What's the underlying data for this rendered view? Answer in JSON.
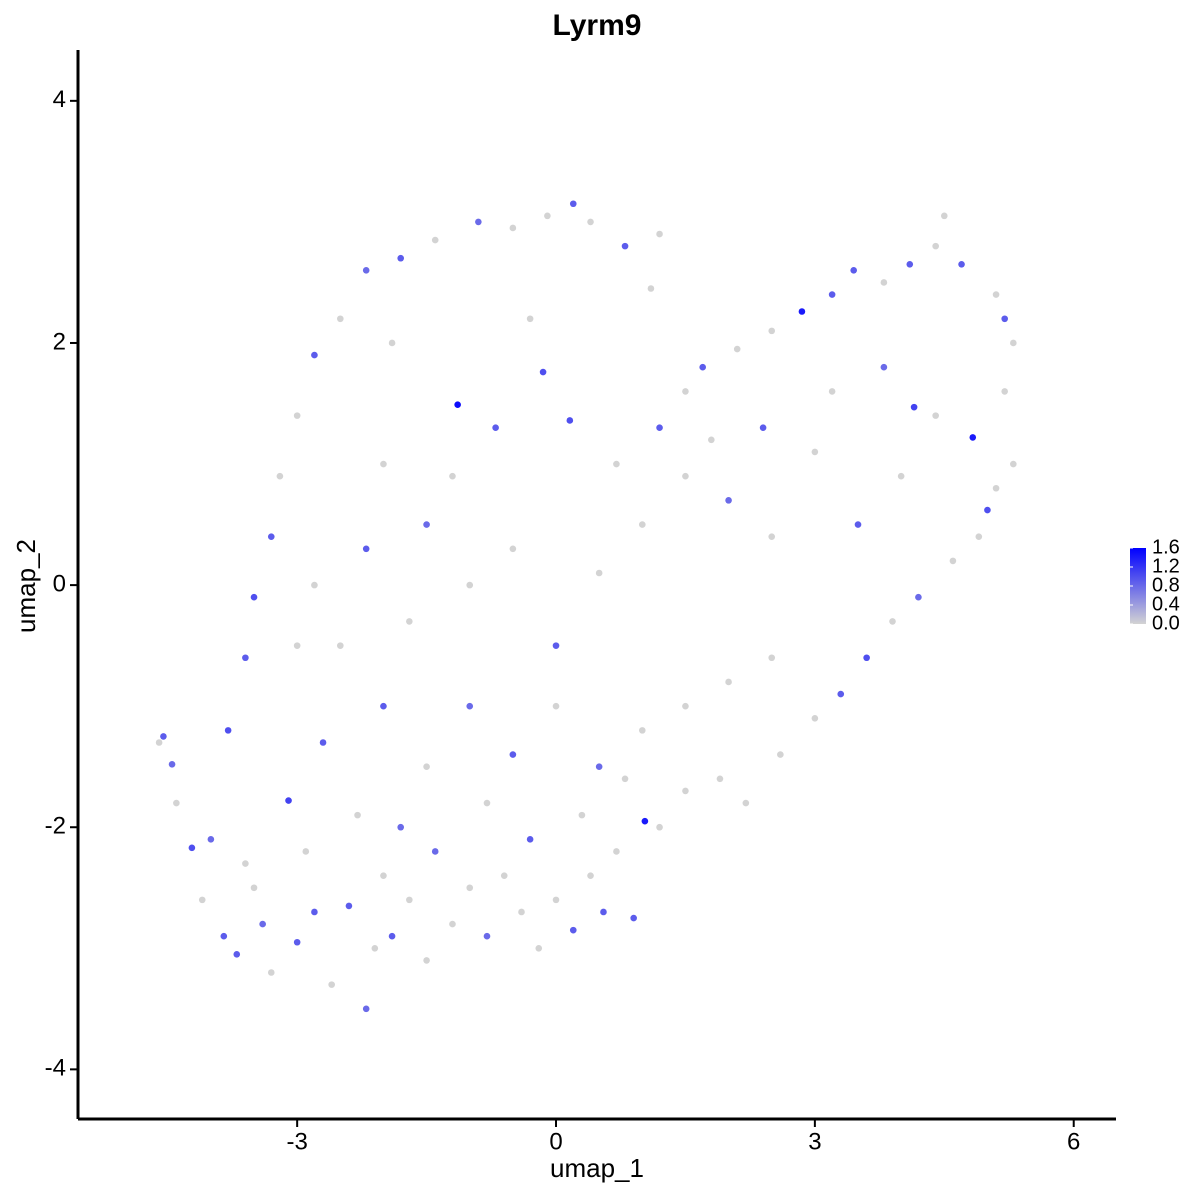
{
  "chart_data": {
    "type": "scatter",
    "title": "Lyrm9",
    "x_label": "umap_1",
    "y_label": "umap_2",
    "xlim": [
      -5.54,
      6.49
    ],
    "ylim": [
      -4.41,
      4.42
    ],
    "xticks": [
      -3,
      0,
      3,
      6
    ],
    "yticks": [
      -4,
      -2,
      0,
      2,
      4
    ],
    "color_low": "#d3d3d3",
    "color_high": "#0000ff",
    "clim": [
      0,
      1.6
    ],
    "cticks": [
      {
        "value": 0,
        "label": "0.0"
      },
      {
        "value": 0.4,
        "label": "0.4"
      },
      {
        "value": 0.8,
        "label": "0.8"
      },
      {
        "value": 1.2,
        "label": "1.2"
      },
      {
        "value": 1.6,
        "label": "1.6"
      }
    ],
    "x": [
      -4.55,
      -4.45,
      -4.6,
      -4.4,
      -4.22,
      -4.1,
      -4.0,
      -3.85,
      -3.7,
      -3.6,
      -3.5,
      -3.4,
      -3.3,
      -3.1,
      -3.0,
      -2.9,
      -2.8,
      -2.6,
      -2.4,
      -2.2,
      -2.1,
      -2.0,
      -1.9,
      -1.7,
      -1.5,
      -1.4,
      -1.2,
      -1.0,
      -0.8,
      -0.6,
      -0.4,
      -0.2,
      0.0,
      0.2,
      0.4,
      0.55,
      0.7,
      0.9,
      1.03,
      1.2,
      1.5,
      1.9,
      2.2,
      2.6,
      3.0,
      3.3,
      3.6,
      3.9,
      4.2,
      4.6,
      4.9,
      5.1,
      5.0,
      5.3,
      5.2,
      5.3,
      5.2,
      5.1,
      4.83,
      4.7,
      4.5,
      4.4,
      4.1,
      3.8,
      3.45,
      3.2,
      2.85,
      2.5,
      2.1,
      1.7,
      1.5,
      1.2,
      1.1,
      0.8,
      0.4,
      0.2,
      -0.1,
      -0.5,
      -0.9,
      -1.4,
      -1.8,
      -2.2,
      -2.5,
      -2.8,
      -3.0,
      -3.2,
      -3.3,
      -3.5,
      -3.6,
      -3.8,
      -1.14,
      -0.15,
      0.16,
      4.15,
      -2.0,
      -1.5,
      -1.0,
      -0.5,
      0.0,
      0.5,
      1.0,
      1.5,
      2.0,
      2.5,
      3.0,
      3.5,
      4.0,
      4.4,
      3.8,
      3.2,
      2.4,
      1.8,
      1.2,
      0.7,
      -2.5,
      -2.0,
      -1.5,
      -1.0,
      -0.5,
      0.0,
      0.5,
      1.0,
      1.5,
      2.0,
      2.5,
      -3.0,
      -2.7,
      -2.3,
      -1.8,
      -0.8,
      -0.3,
      0.3,
      0.8,
      -2.8,
      -2.2,
      -1.7,
      -1.2,
      -0.7,
      -0.3,
      -1.9
    ],
    "y": [
      -1.25,
      -1.48,
      -1.3,
      -1.8,
      -2.17,
      -2.6,
      -2.1,
      -2.9,
      -3.05,
      -2.3,
      -2.5,
      -2.8,
      -3.2,
      -1.78,
      -2.95,
      -2.2,
      -2.7,
      -3.3,
      -2.65,
      -3.5,
      -3.0,
      -2.4,
      -2.9,
      -2.6,
      -3.1,
      -2.2,
      -2.8,
      -2.5,
      -2.9,
      -2.4,
      -2.7,
      -3.0,
      -2.6,
      -2.85,
      -2.4,
      -2.7,
      -2.2,
      -2.75,
      -1.95,
      -2.0,
      -1.7,
      -1.6,
      -1.8,
      -1.4,
      -1.1,
      -0.9,
      -0.6,
      -0.3,
      -0.1,
      0.2,
      0.4,
      0.8,
      0.62,
      1.0,
      1.6,
      2.0,
      2.2,
      2.4,
      1.22,
      2.65,
      3.05,
      2.8,
      2.65,
      2.5,
      2.6,
      2.4,
      2.26,
      2.1,
      1.95,
      1.8,
      1.6,
      2.9,
      2.45,
      2.8,
      3.0,
      3.15,
      3.05,
      2.95,
      3.0,
      2.85,
      2.7,
      2.6,
      2.2,
      1.9,
      1.4,
      0.9,
      0.4,
      -0.1,
      -0.6,
      -1.2,
      1.49,
      1.76,
      1.36,
      1.47,
      1.0,
      0.5,
      0.0,
      0.3,
      -0.5,
      0.1,
      0.5,
      0.9,
      0.7,
      0.4,
      1.1,
      0.5,
      0.9,
      1.4,
      1.8,
      1.6,
      1.3,
      1.2,
      1.3,
      1.0,
      -0.5,
      -1.0,
      -1.5,
      -1.0,
      -1.4,
      -1.0,
      -1.5,
      -1.2,
      -1.0,
      -0.8,
      -0.6,
      -0.5,
      -1.3,
      -1.9,
      -2.0,
      -1.8,
      -2.1,
      -1.9,
      -1.6,
      0.0,
      0.3,
      -0.3,
      0.9,
      1.3,
      2.2,
      2.0
    ],
    "values": [
      0.9,
      0.8,
      0,
      0,
      1.0,
      0,
      0.8,
      0.9,
      0.9,
      0,
      0,
      0.8,
      0,
      1.1,
      0.9,
      0,
      0.9,
      0,
      0.9,
      0.8,
      0,
      0,
      0.9,
      0,
      0,
      0.8,
      0,
      0,
      0.8,
      0,
      0,
      0,
      0,
      0.9,
      0,
      0.9,
      0,
      0.9,
      1.4,
      0,
      0,
      0,
      0,
      0,
      0,
      0.9,
      1.0,
      0,
      0.8,
      0,
      0,
      0,
      1.0,
      0,
      0,
      0,
      0.9,
      0,
      1.4,
      0.9,
      0,
      0,
      0.9,
      0,
      0.9,
      0.9,
      1.4,
      0,
      0,
      0.9,
      0,
      0,
      0,
      0.9,
      0,
      0.9,
      0,
      0,
      0.8,
      0,
      0.9,
      0.8,
      0,
      0.9,
      0,
      0,
      0.9,
      1.0,
      0.9,
      1.0,
      1.5,
      1.0,
      1.0,
      1.1,
      0,
      0.8,
      0,
      0,
      0.9,
      0,
      0,
      0,
      0.8,
      0,
      0,
      0.9,
      0,
      0,
      0.8,
      0,
      0.9,
      0,
      0.9,
      0,
      0,
      0.9,
      0,
      0.8,
      0.9,
      0,
      0.8,
      0,
      0,
      0,
      0,
      0,
      0.9,
      0,
      0.8,
      0,
      0.9,
      0,
      0,
      0,
      0.9,
      0,
      0,
      0.9,
      0,
      0
    ]
  }
}
